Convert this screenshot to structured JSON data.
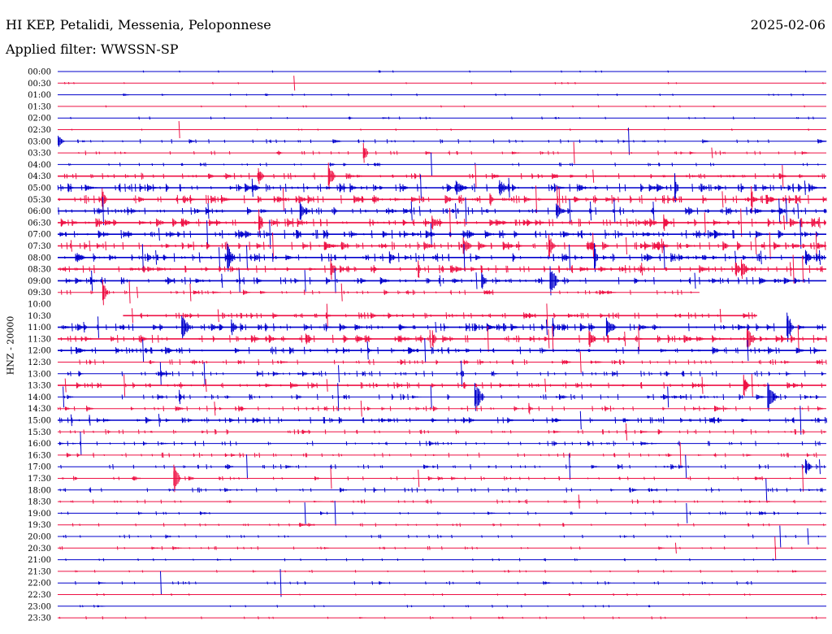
{
  "header": {
    "station": "HI KEP, Petalidi, Messenia, Peloponnese",
    "date": "2025-02-06",
    "filter": "Applied filter: WWSSN-SP"
  },
  "chart_data": {
    "type": "line",
    "title": "HI KEP, Petalidi, Messenia, Peloponnese",
    "subtitle": "Applied filter: WWSSN-SP",
    "ylabel": "HNZ - 20000",
    "row_labels": [
      "00:00",
      "00:30",
      "01:00",
      "01:30",
      "02:00",
      "02:30",
      "03:00",
      "03:30",
      "04:00",
      "04:30",
      "05:00",
      "05:30",
      "06:00",
      "06:30",
      "07:00",
      "07:30",
      "08:00",
      "08:30",
      "09:00",
      "09:30",
      "10:00",
      "10:30",
      "11:00",
      "11:30",
      "12:00",
      "12:30",
      "13:00",
      "13:30",
      "14:00",
      "14:30",
      "15:00",
      "15:30",
      "16:00",
      "16:30",
      "17:00",
      "17:30",
      "18:00",
      "18:30",
      "19:00",
      "19:30",
      "20:00",
      "20:30",
      "21:00",
      "21:30",
      "22:00",
      "22:30",
      "23:00",
      "23:30"
    ],
    "row_activity": [
      0.1,
      0.1,
      0.15,
      0.1,
      0.2,
      0.1,
      0.4,
      0.4,
      0.3,
      0.7,
      1.0,
      1.0,
      0.9,
      1.0,
      1.0,
      1.0,
      1.0,
      0.9,
      0.8,
      0.5,
      0,
      0.7,
      0.9,
      0.9,
      0.8,
      0.6,
      0.6,
      0.7,
      0.6,
      0.6,
      0.7,
      0.5,
      0.5,
      0.5,
      0.5,
      0.4,
      0.5,
      0.4,
      0.3,
      0.3,
      0.3,
      0.3,
      0.2,
      0.2,
      0.3,
      0.15,
      0.15,
      0.2
    ],
    "row_extent": [
      1,
      1,
      1,
      1,
      1,
      1,
      1,
      1,
      1,
      1,
      1,
      1,
      1,
      1,
      1,
      1,
      1,
      1,
      1,
      0.835,
      0,
      0.91,
      1,
      1,
      1,
      1,
      1,
      1,
      1,
      1,
      1,
      1,
      1,
      1,
      1,
      1,
      1,
      1,
      1,
      1,
      1,
      1,
      1,
      1,
      1,
      1,
      1,
      1
    ],
    "row_start": [
      0,
      0,
      0,
      0,
      0,
      0,
      0,
      0,
      0,
      0,
      0,
      0,
      0,
      0,
      0,
      0,
      0,
      0,
      0,
      0,
      0,
      0.085,
      0,
      0,
      0,
      0,
      0,
      0,
      0,
      0,
      0,
      0,
      0,
      0,
      0,
      0,
      0,
      0,
      0,
      0,
      0,
      0,
      0,
      0,
      0,
      0,
      0,
      0
    ],
    "trace_colors": [
      "#0000cc",
      "#ee1144"
    ],
    "grid": false
  }
}
